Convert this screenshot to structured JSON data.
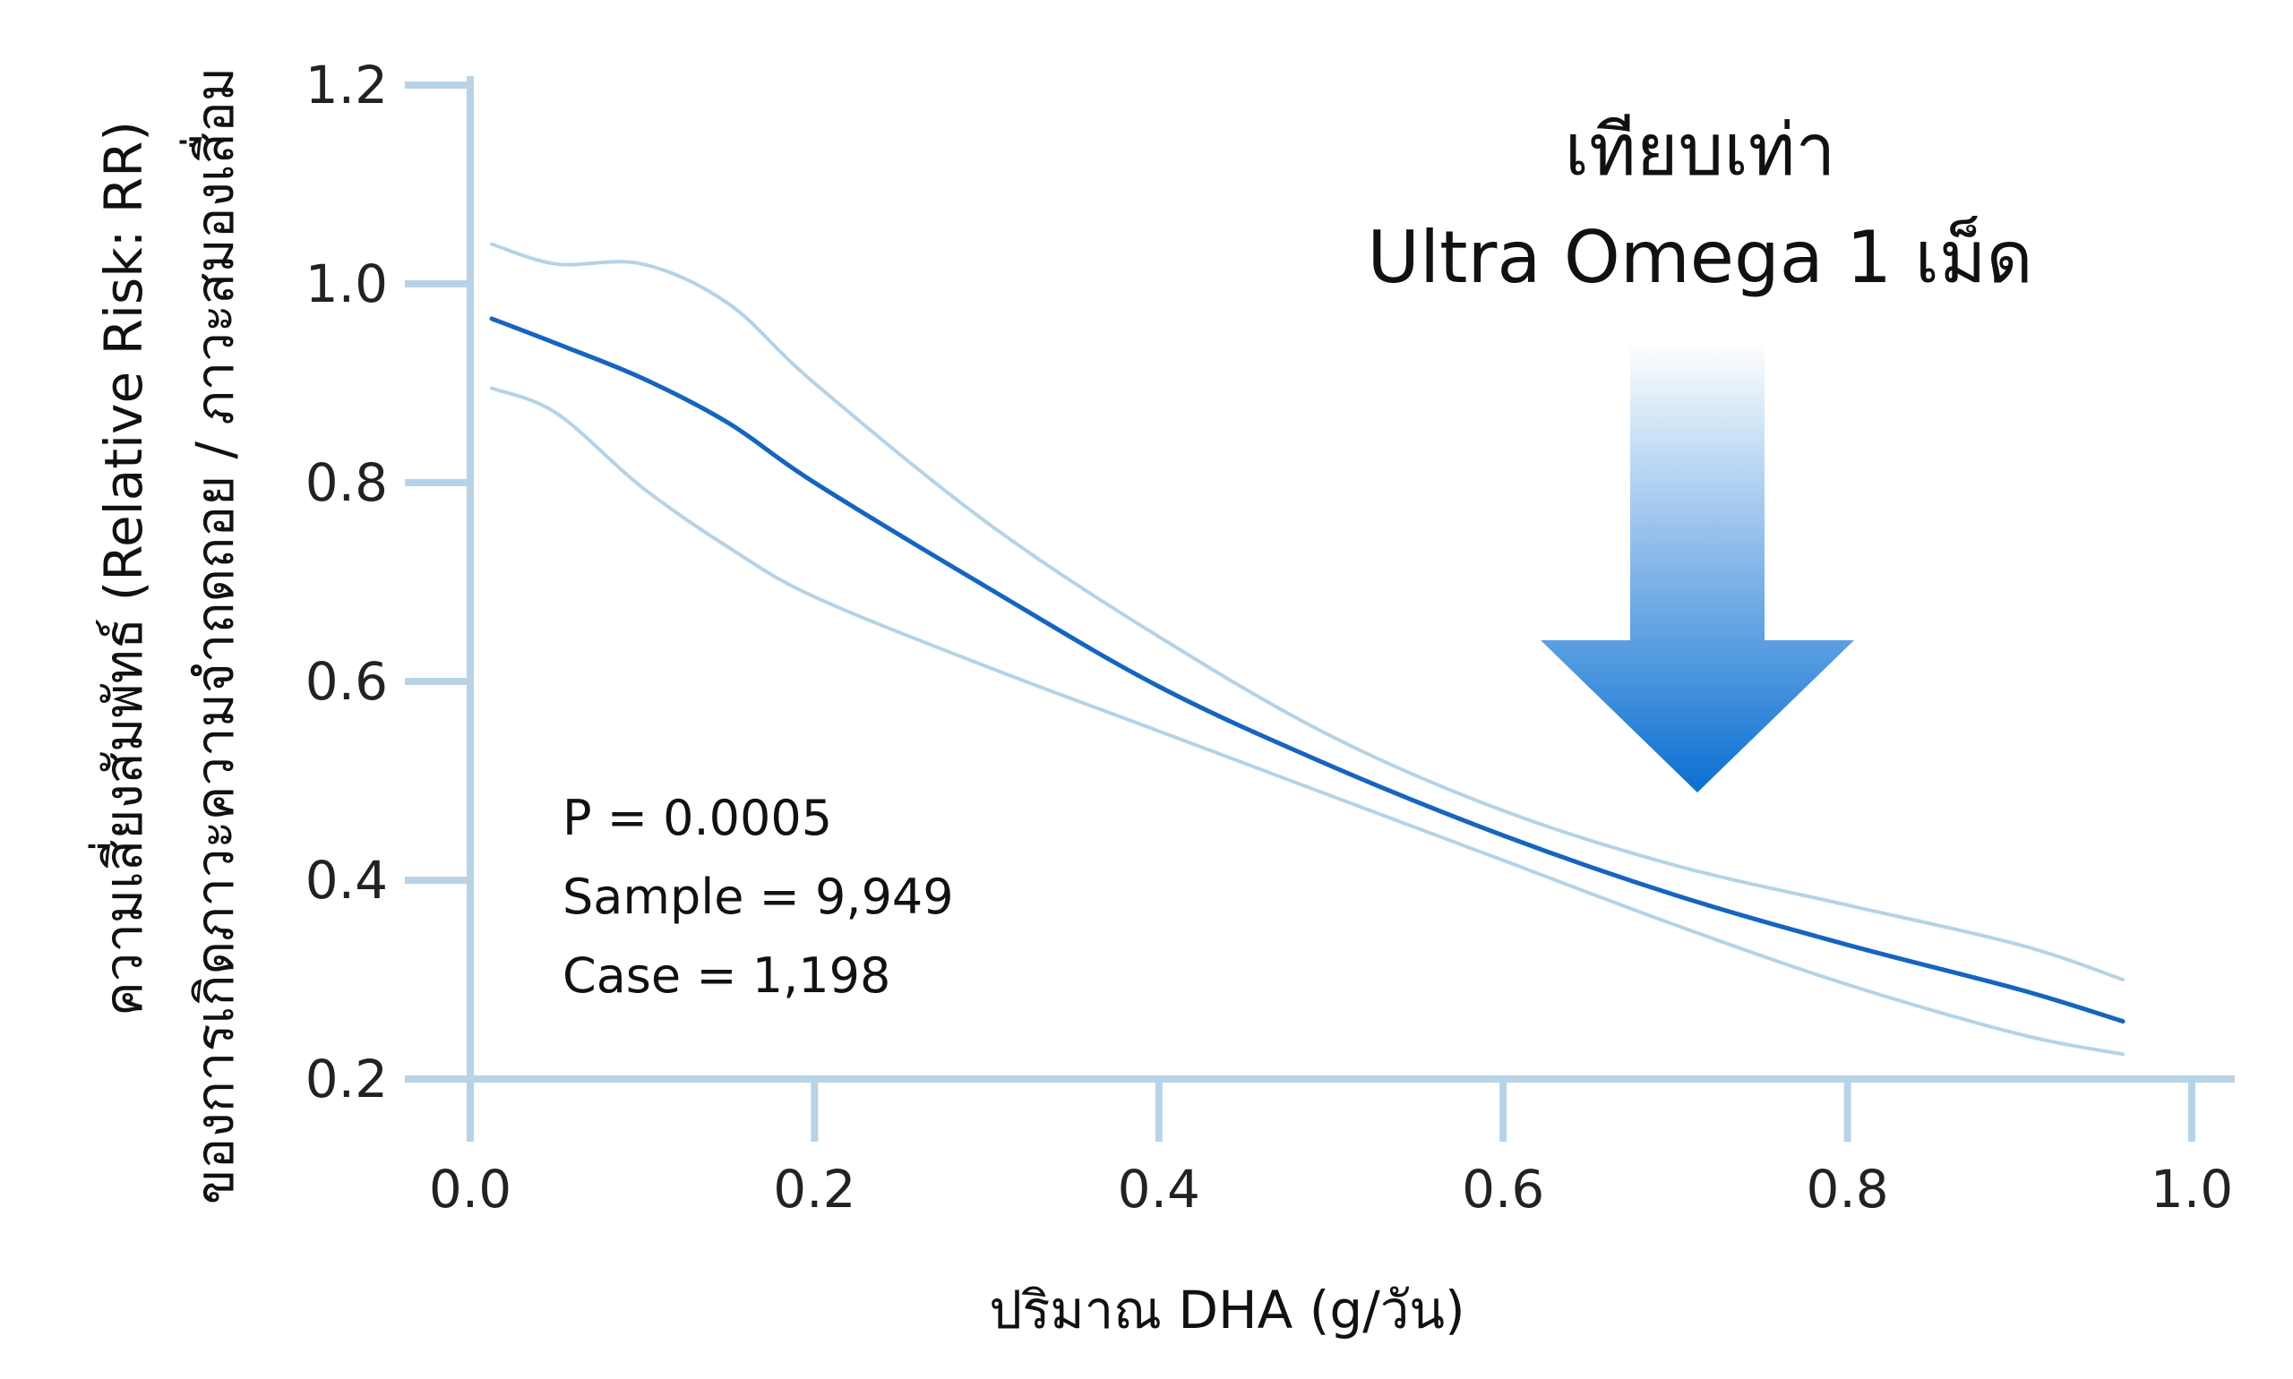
{
  "chart_data": {
    "type": "line",
    "xlabel": "ปริมาณ DHA (g/วัน)",
    "ylabel_lines": [
      "ความเสี่ยงสัมพัทธ์ (Relative Risk: RR)",
      "ของการเกิดภาวะความจำถดถอย / ภาวะสมองเสื่อม"
    ],
    "xlim": [
      0.0,
      1.0
    ],
    "ylim": [
      0.2,
      1.2
    ],
    "x_ticks": [
      "0.0",
      "0.2",
      "0.4",
      "0.6",
      "0.8",
      "1.0"
    ],
    "y_ticks": [
      "0.2",
      "0.4",
      "0.6",
      "0.8",
      "1.0",
      "1.2"
    ],
    "grid": false,
    "series": [
      {
        "role": "estimate",
        "color": "#1565c0",
        "x": [
          0.0,
          0.05,
          0.1,
          0.15,
          0.2,
          0.3,
          0.4,
          0.5,
          0.6,
          0.7,
          0.8,
          0.9,
          0.96
        ],
        "values": [
          0.965,
          0.94,
          0.905,
          0.86,
          0.8,
          0.695,
          0.595,
          0.515,
          0.445,
          0.385,
          0.335,
          0.29,
          0.258
        ]
      },
      {
        "role": "upper-ci",
        "color": "#b5d3e7",
        "x": [
          0.0,
          0.05,
          0.1,
          0.15,
          0.2,
          0.3,
          0.4,
          0.5,
          0.6,
          0.7,
          0.8,
          0.9,
          0.96
        ],
        "values": [
          1.04,
          1.02,
          1.02,
          0.98,
          0.9,
          0.76,
          0.645,
          0.545,
          0.47,
          0.415,
          0.375,
          0.335,
          0.3
        ]
      },
      {
        "role": "lower-ci",
        "color": "#b5d3e7",
        "x": [
          0.0,
          0.05,
          0.1,
          0.15,
          0.2,
          0.3,
          0.4,
          0.5,
          0.6,
          0.7,
          0.8,
          0.9,
          0.96
        ],
        "values": [
          0.895,
          0.87,
          0.795,
          0.735,
          0.685,
          0.615,
          0.55,
          0.485,
          0.42,
          0.355,
          0.295,
          0.245,
          0.225
        ]
      }
    ],
    "annotations": {
      "stats": [
        "P = 0.0005",
        "Sample = 9,949",
        "Case = 1,198"
      ],
      "callout": [
        "เทียบเท่า",
        "Ultra Omega 1 เม็ด"
      ],
      "callout_x": 0.71
    },
    "colors": {
      "axis": "#b9d3e6",
      "arrow_top": "#ffffff",
      "arrow_bottom": "#0a6fd2"
    }
  }
}
